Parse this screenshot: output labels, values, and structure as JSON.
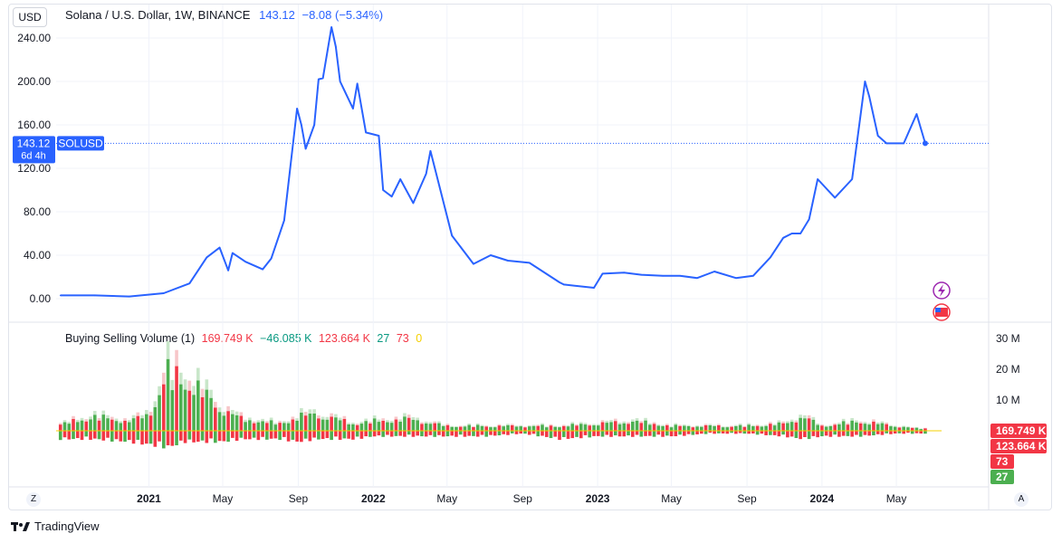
{
  "toolbar": {
    "currency": "USD"
  },
  "legend": {
    "symbol": "Solana / U.S. Dollar, 1W, BINANCE",
    "last": "143.12",
    "change": "−8.08 (−5.34%)"
  },
  "price_tag": {
    "value": "143.12",
    "countdown": "6d 4h",
    "ticker": "SOLUSD"
  },
  "volume_legend": {
    "name": "Buying Selling Volume (1)",
    "v1": "169.749 K",
    "v2": "−46.085 K",
    "v3": "123.664 K",
    "v4": "27",
    "v5": "73",
    "v6": "0"
  },
  "volume_tags": [
    "169.749 K",
    "123.664 K",
    "73",
    "27"
  ],
  "footer": {
    "brand": "TradingView"
  },
  "corner": {
    "left": "Z",
    "right": "A"
  },
  "colors": {
    "line": "#2962ff",
    "buy": "#4caf50",
    "sell": "#f23645",
    "buy_light": "#c8e6c9",
    "sell_light": "#f7c6c9"
  },
  "chart_data": [
    {
      "type": "line",
      "title": "Solana / U.S. Dollar, 1W, BINANCE",
      "y_ticks": [
        "240.00",
        "200.00",
        "160.00",
        "120.00",
        "80.00",
        "40.00",
        "0.00"
      ],
      "ylim": [
        0,
        240
      ],
      "x_ticks": [
        "2021",
        "May",
        "Sep",
        "2022",
        "May",
        "Sep",
        "2023",
        "May",
        "Sep",
        "2024",
        "May"
      ],
      "x": [
        "2020-08-10",
        "2020-10-05",
        "2020-11-30",
        "2021-01-25",
        "2021-03-08",
        "2021-04-05",
        "2021-04-26",
        "2021-05-10",
        "2021-05-17",
        "2021-06-07",
        "2021-07-05",
        "2021-07-19",
        "2021-08-09",
        "2021-08-30",
        "2021-09-06",
        "2021-09-13",
        "2021-09-27",
        "2021-10-04",
        "2021-10-11",
        "2021-10-25",
        "2021-11-01",
        "2021-11-08",
        "2021-11-29",
        "2021-12-06",
        "2021-12-20",
        "2022-01-10",
        "2022-01-17",
        "2022-01-31",
        "2022-02-14",
        "2022-03-07",
        "2022-03-28",
        "2022-04-04",
        "2022-05-09",
        "2022-06-13",
        "2022-07-11",
        "2022-08-08",
        "2022-09-12",
        "2022-10-31",
        "2022-11-07",
        "2022-12-26",
        "2023-01-09",
        "2023-02-13",
        "2023-03-13",
        "2023-04-17",
        "2023-05-15",
        "2023-06-12",
        "2023-07-10",
        "2023-08-14",
        "2023-09-11",
        "2023-10-09",
        "2023-10-30",
        "2023-11-13",
        "2023-11-27",
        "2023-12-11",
        "2023-12-25",
        "2024-01-22",
        "2024-02-19",
        "2024-03-11",
        "2024-03-18",
        "2024-04-01",
        "2024-04-15",
        "2024-05-13",
        "2024-06-03",
        "2024-06-17"
      ],
      "series": [
        {
          "values": [
            3,
            3,
            2,
            5,
            14,
            38,
            47,
            26,
            42,
            34,
            27,
            37,
            72,
            175,
            160,
            138,
            160,
            202,
            203,
            250,
            232,
            200,
            175,
            198,
            153,
            150,
            100,
            94,
            110,
            88,
            115,
            136,
            58,
            32,
            40,
            35,
            33,
            15,
            13,
            10,
            23,
            24,
            22,
            21,
            21,
            19,
            25,
            19,
            21,
            38,
            56,
            60,
            60,
            73,
            110,
            93,
            110,
            200,
            186,
            150,
            143,
            143,
            170,
            143
          ]
        }
      ]
    },
    {
      "type": "bar",
      "title": "Buying Selling Volume (1)",
      "y_ticks": [
        "30 M",
        "20 M",
        "10 M"
      ],
      "ylim": [
        -15,
        30
      ],
      "note": "Volume shown in millions; positive = buying, negative = selling; values estimated from bars",
      "x": [
        "2020-08",
        "2020-10",
        "2020-12",
        "2021-01",
        "2021-02",
        "2021-03",
        "2021-05",
        "2021-06",
        "2021-08",
        "2021-09",
        "2021-10",
        "2021-11",
        "2021-12",
        "2022-01",
        "2022-03",
        "2022-05",
        "2022-07",
        "2022-09",
        "2022-11",
        "2023-01",
        "2023-03",
        "2023-05",
        "2023-07",
        "2023-09",
        "2023-11",
        "2023-12",
        "2024-01",
        "2024-03",
        "2024-05",
        "2024-06"
      ],
      "series": [
        {
          "name": "buy",
          "values": [
            2,
            6,
            4,
            7,
            24,
            22,
            9,
            5,
            3,
            6,
            7,
            5,
            3,
            4,
            5,
            2,
            2,
            2,
            2,
            3,
            4,
            2,
            2,
            2,
            3,
            6,
            2,
            4,
            2,
            1
          ]
        },
        {
          "name": "sell",
          "values": [
            -3,
            -3,
            -4,
            -5,
            -6,
            -4,
            -4,
            -3,
            -3,
            -4,
            -3,
            -3,
            -3,
            -2,
            -2,
            -2,
            -2,
            -1,
            -3,
            -2,
            -2,
            -2,
            -1,
            -1,
            -2,
            -3,
            -2,
            -2,
            -1,
            -1
          ]
        }
      ]
    }
  ]
}
